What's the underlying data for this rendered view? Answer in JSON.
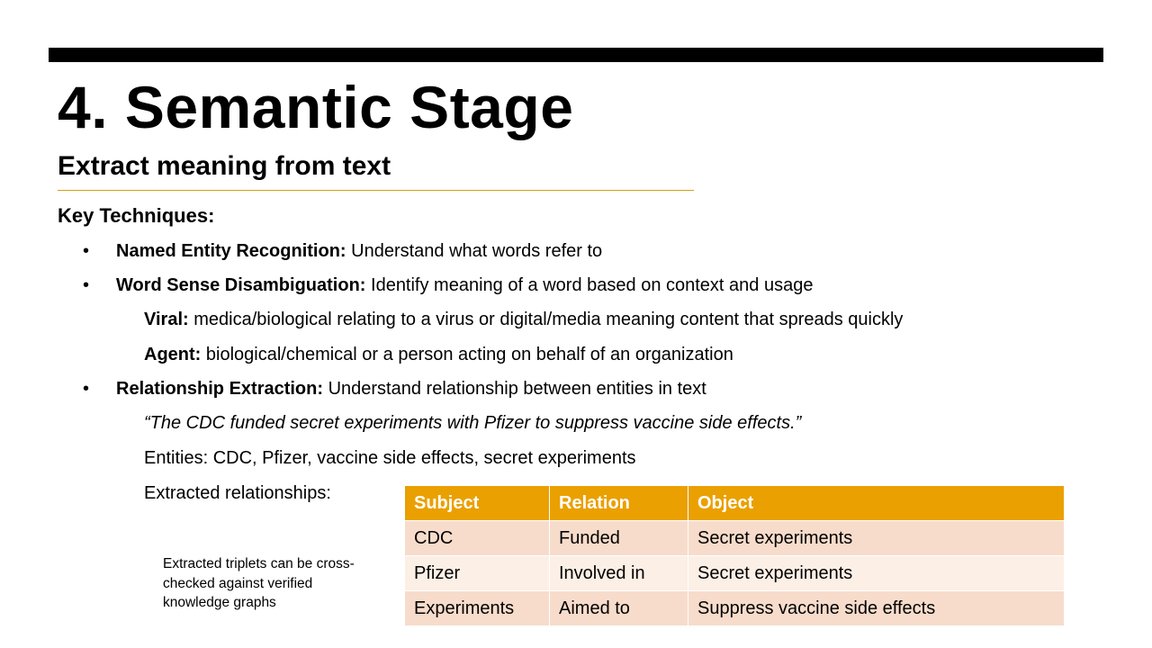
{
  "slide": {
    "title": "4. Semantic Stage",
    "subtitle": "Extract meaning from text",
    "key_heading": "Key Techniques:",
    "bullet_glyph": "•",
    "bullets": [
      {
        "term": "Named Entity Recognition:",
        "text": " Understand what words refer to"
      },
      {
        "term": "Word Sense Disambiguation:",
        "text": " Identify meaning of a word based on context and usage"
      },
      {
        "term": "Relationship Extraction:",
        "text": " Understand relationship between entities in text"
      }
    ],
    "senses": [
      {
        "term": "Viral:",
        "text": " medica/biological relating to a virus or digital/media meaning content that spreads quickly"
      },
      {
        "term": "Agent:",
        "text": " biological/chemical or a person acting on behalf of an organization"
      }
    ],
    "quote": "“The CDC funded secret experiments with Pfizer to suppress vaccine side effects.”",
    "entities": "Entities: CDC, Pfizer, vaccine side effects, secret experiments",
    "extracted_label": "Extracted relationships:",
    "note": "Extracted triplets can be cross-checked against verified knowledge graphs",
    "table": {
      "headers": [
        "Subject",
        "Relation",
        "Object"
      ],
      "rows": [
        [
          "CDC",
          "Funded",
          "Secret experiments"
        ],
        [
          "Pfizer",
          "Involved in",
          "Secret experiments"
        ],
        [
          "Experiments",
          "Aimed to",
          "Suppress vaccine side effects"
        ]
      ]
    },
    "colors": {
      "table_header": "#eaa000",
      "row_dark": "#f7dccb",
      "row_light": "#fcefe6",
      "rule": "#d4a017"
    }
  }
}
